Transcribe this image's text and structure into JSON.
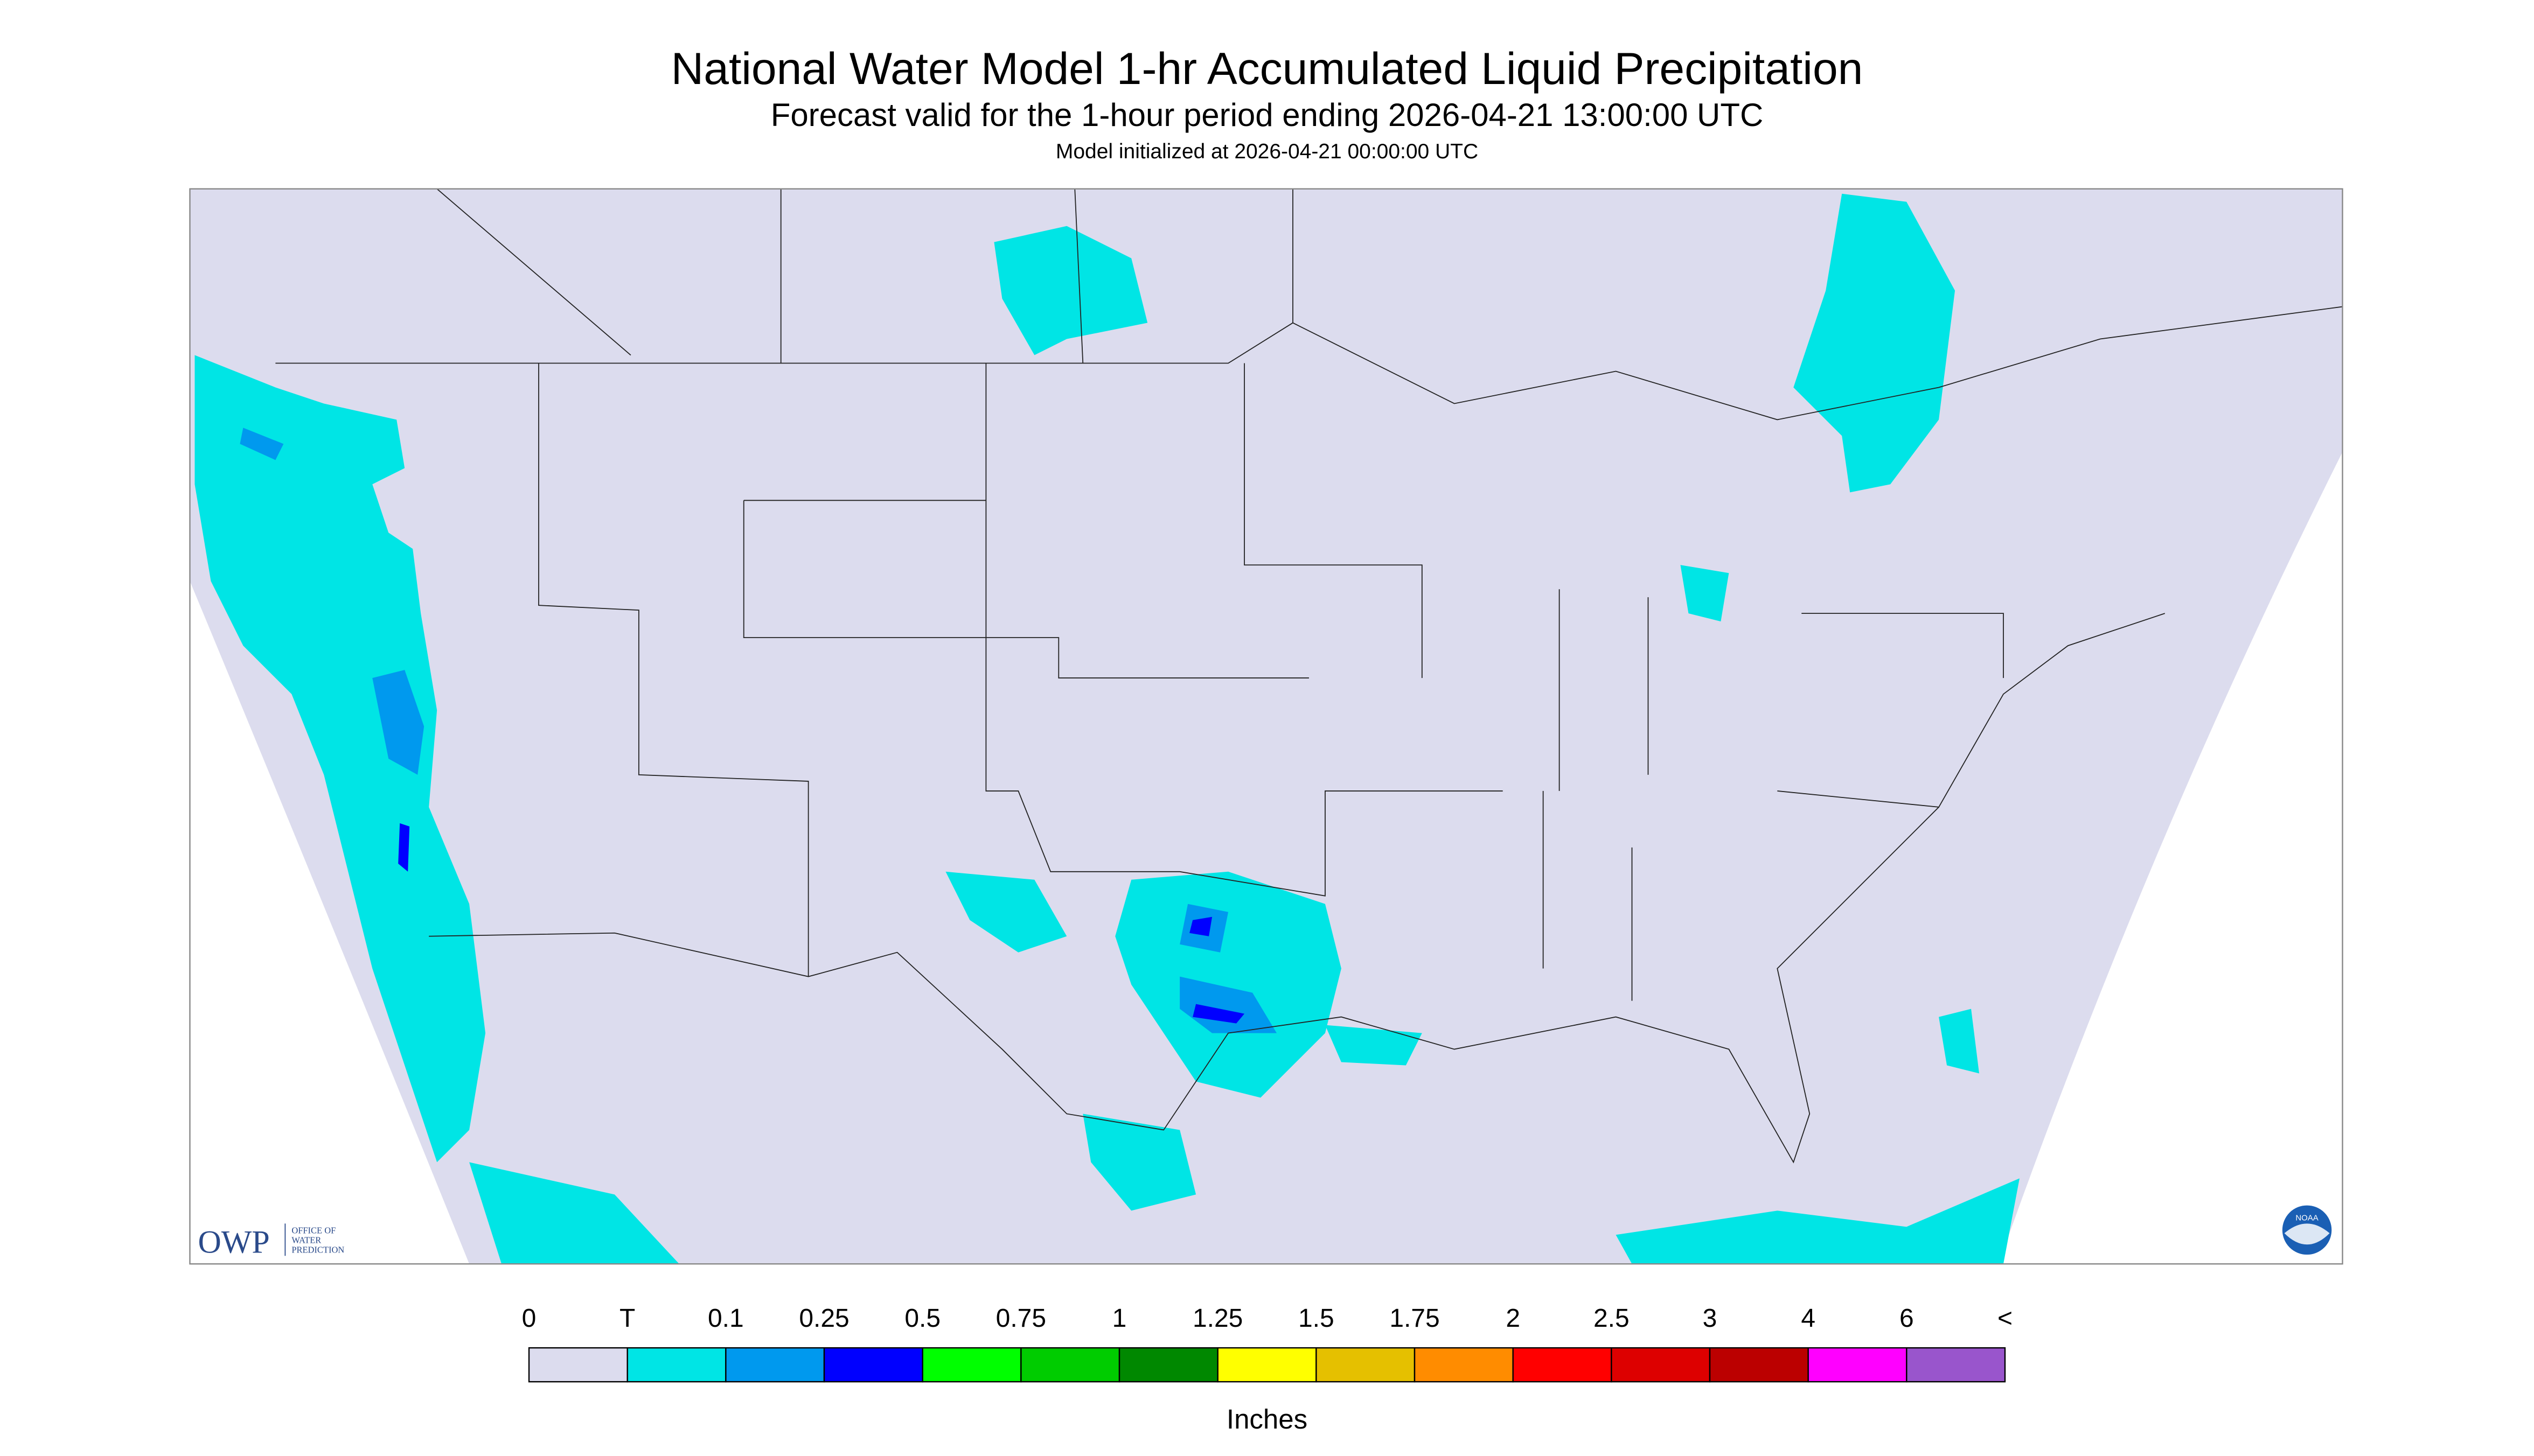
{
  "header": {
    "title": "National Water Model 1-hr Accumulated Liquid Precipitation",
    "subtitle": "Forecast valid for the 1-hour period ending 2026-04-21 13:00:00 UTC",
    "note": "Model initialized at 2026-04-21 00:00:00 UTC"
  },
  "logos": {
    "owp": "OWP",
    "owp_text": [
      "OFFICE OF",
      "WATER",
      "PREDICTION"
    ],
    "noaa": "NOAA"
  },
  "legend": {
    "labels": [
      "0",
      "T",
      "0.1",
      "0.25",
      "0.5",
      "0.75",
      "1",
      "1.25",
      "1.5",
      "1.75",
      "2",
      "2.5",
      "3",
      "4",
      "6",
      "<"
    ],
    "colors": [
      "#dcdcee",
      "#00e5e5",
      "#0099ee",
      "#0000ff",
      "#00ff00",
      "#00cc00",
      "#008800",
      "#ffff00",
      "#e5c000",
      "#ff8c00",
      "#ff0000",
      "#dd0000",
      "#bb0000",
      "#ff00ff",
      "#9955cc"
    ],
    "unit": "Inches"
  }
}
